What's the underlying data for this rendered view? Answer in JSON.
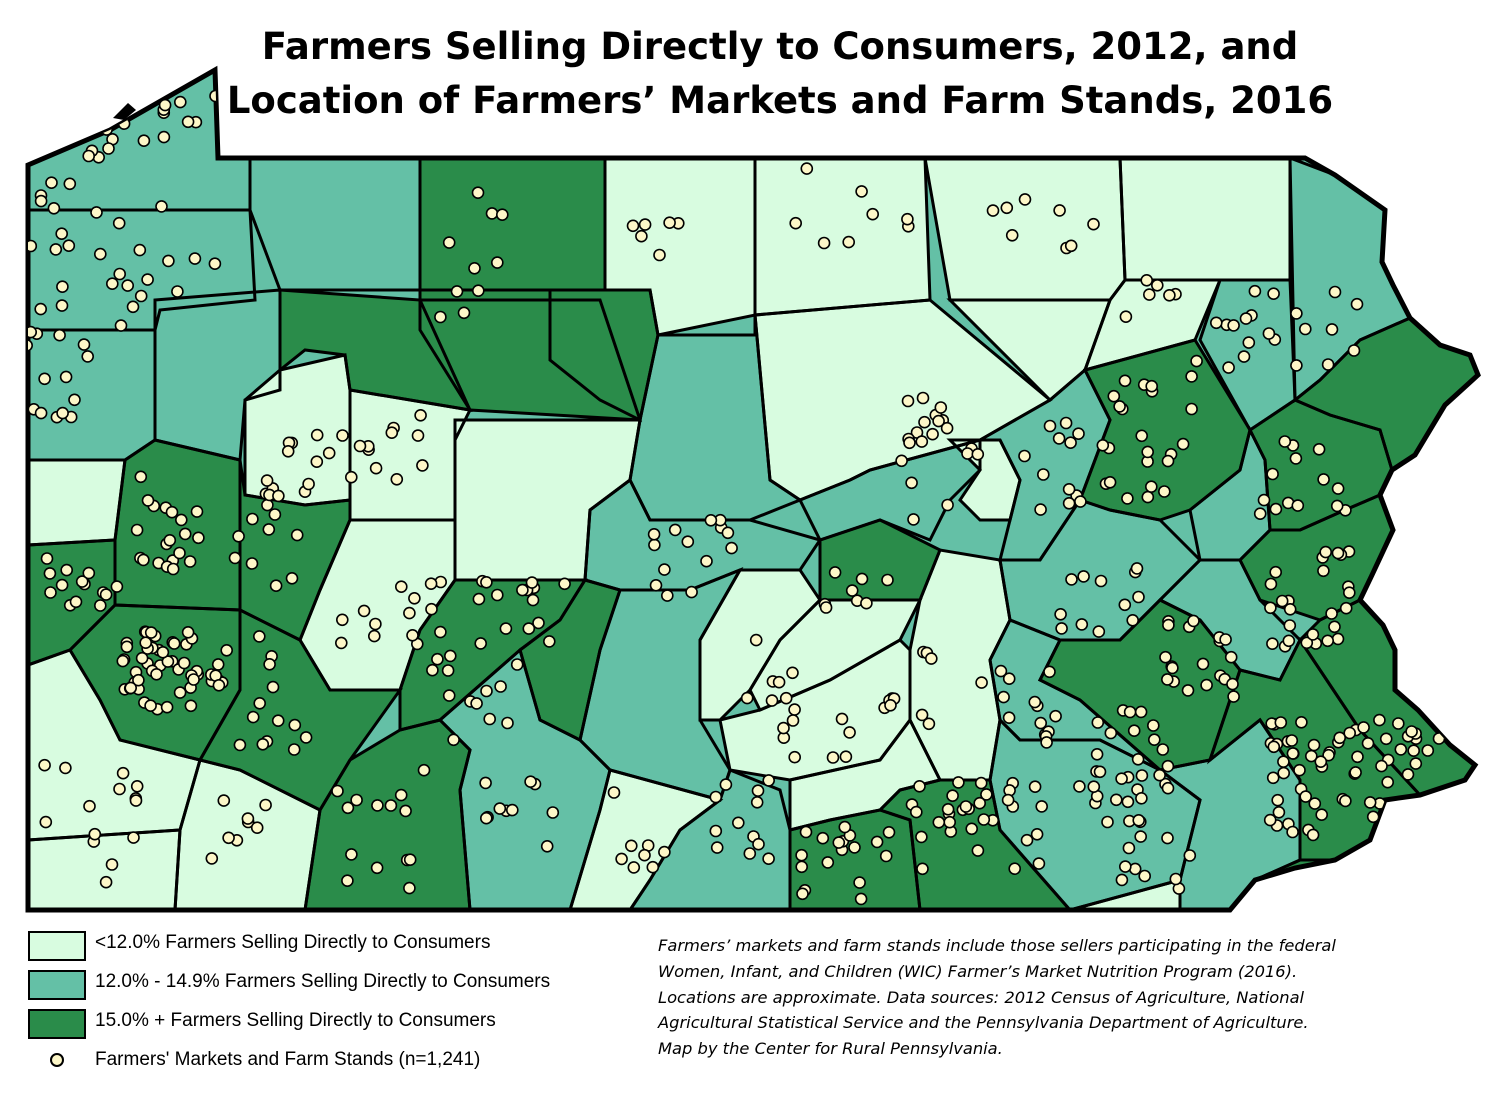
{
  "title": {
    "line1": "Farmers Selling Directly to Consumers, 2012, and",
    "line2": "Location of Farmers’ Markets and Farm Stands, 2016"
  },
  "colors": {
    "low": "#d8fce0",
    "mid": "#64c0a6",
    "high": "#2a8c4a",
    "market_dot": "#fdf7c8",
    "outline": "#000000"
  },
  "legend": {
    "items": [
      {
        "class": "low",
        "label": "<12.0% Farmers Selling Directly to Consumers"
      },
      {
        "class": "mid",
        "label": "12.0% - 14.9% Farmers Selling Directly to Consumers"
      },
      {
        "class": "high",
        "label": "15.0% + Farmers Selling Directly to Consumers"
      }
    ],
    "markets_label": "Farmers' Markets and Farm Stands (n=1,241)"
  },
  "note": {
    "lines": [
      "Farmers’ markets and farm stands include those sellers participating in the federal",
      "Women, Infant, and Children (WIC) Farmer’s Market Nutrition Program (2016).",
      "Locations are approximate. Data sources: 2012 Census of Agriculture, National",
      "Agricultural Statistical Service and the Pennsylvania Department of Agriculture.",
      "Map by the Center for Rural Pennsylvania."
    ]
  }
}
